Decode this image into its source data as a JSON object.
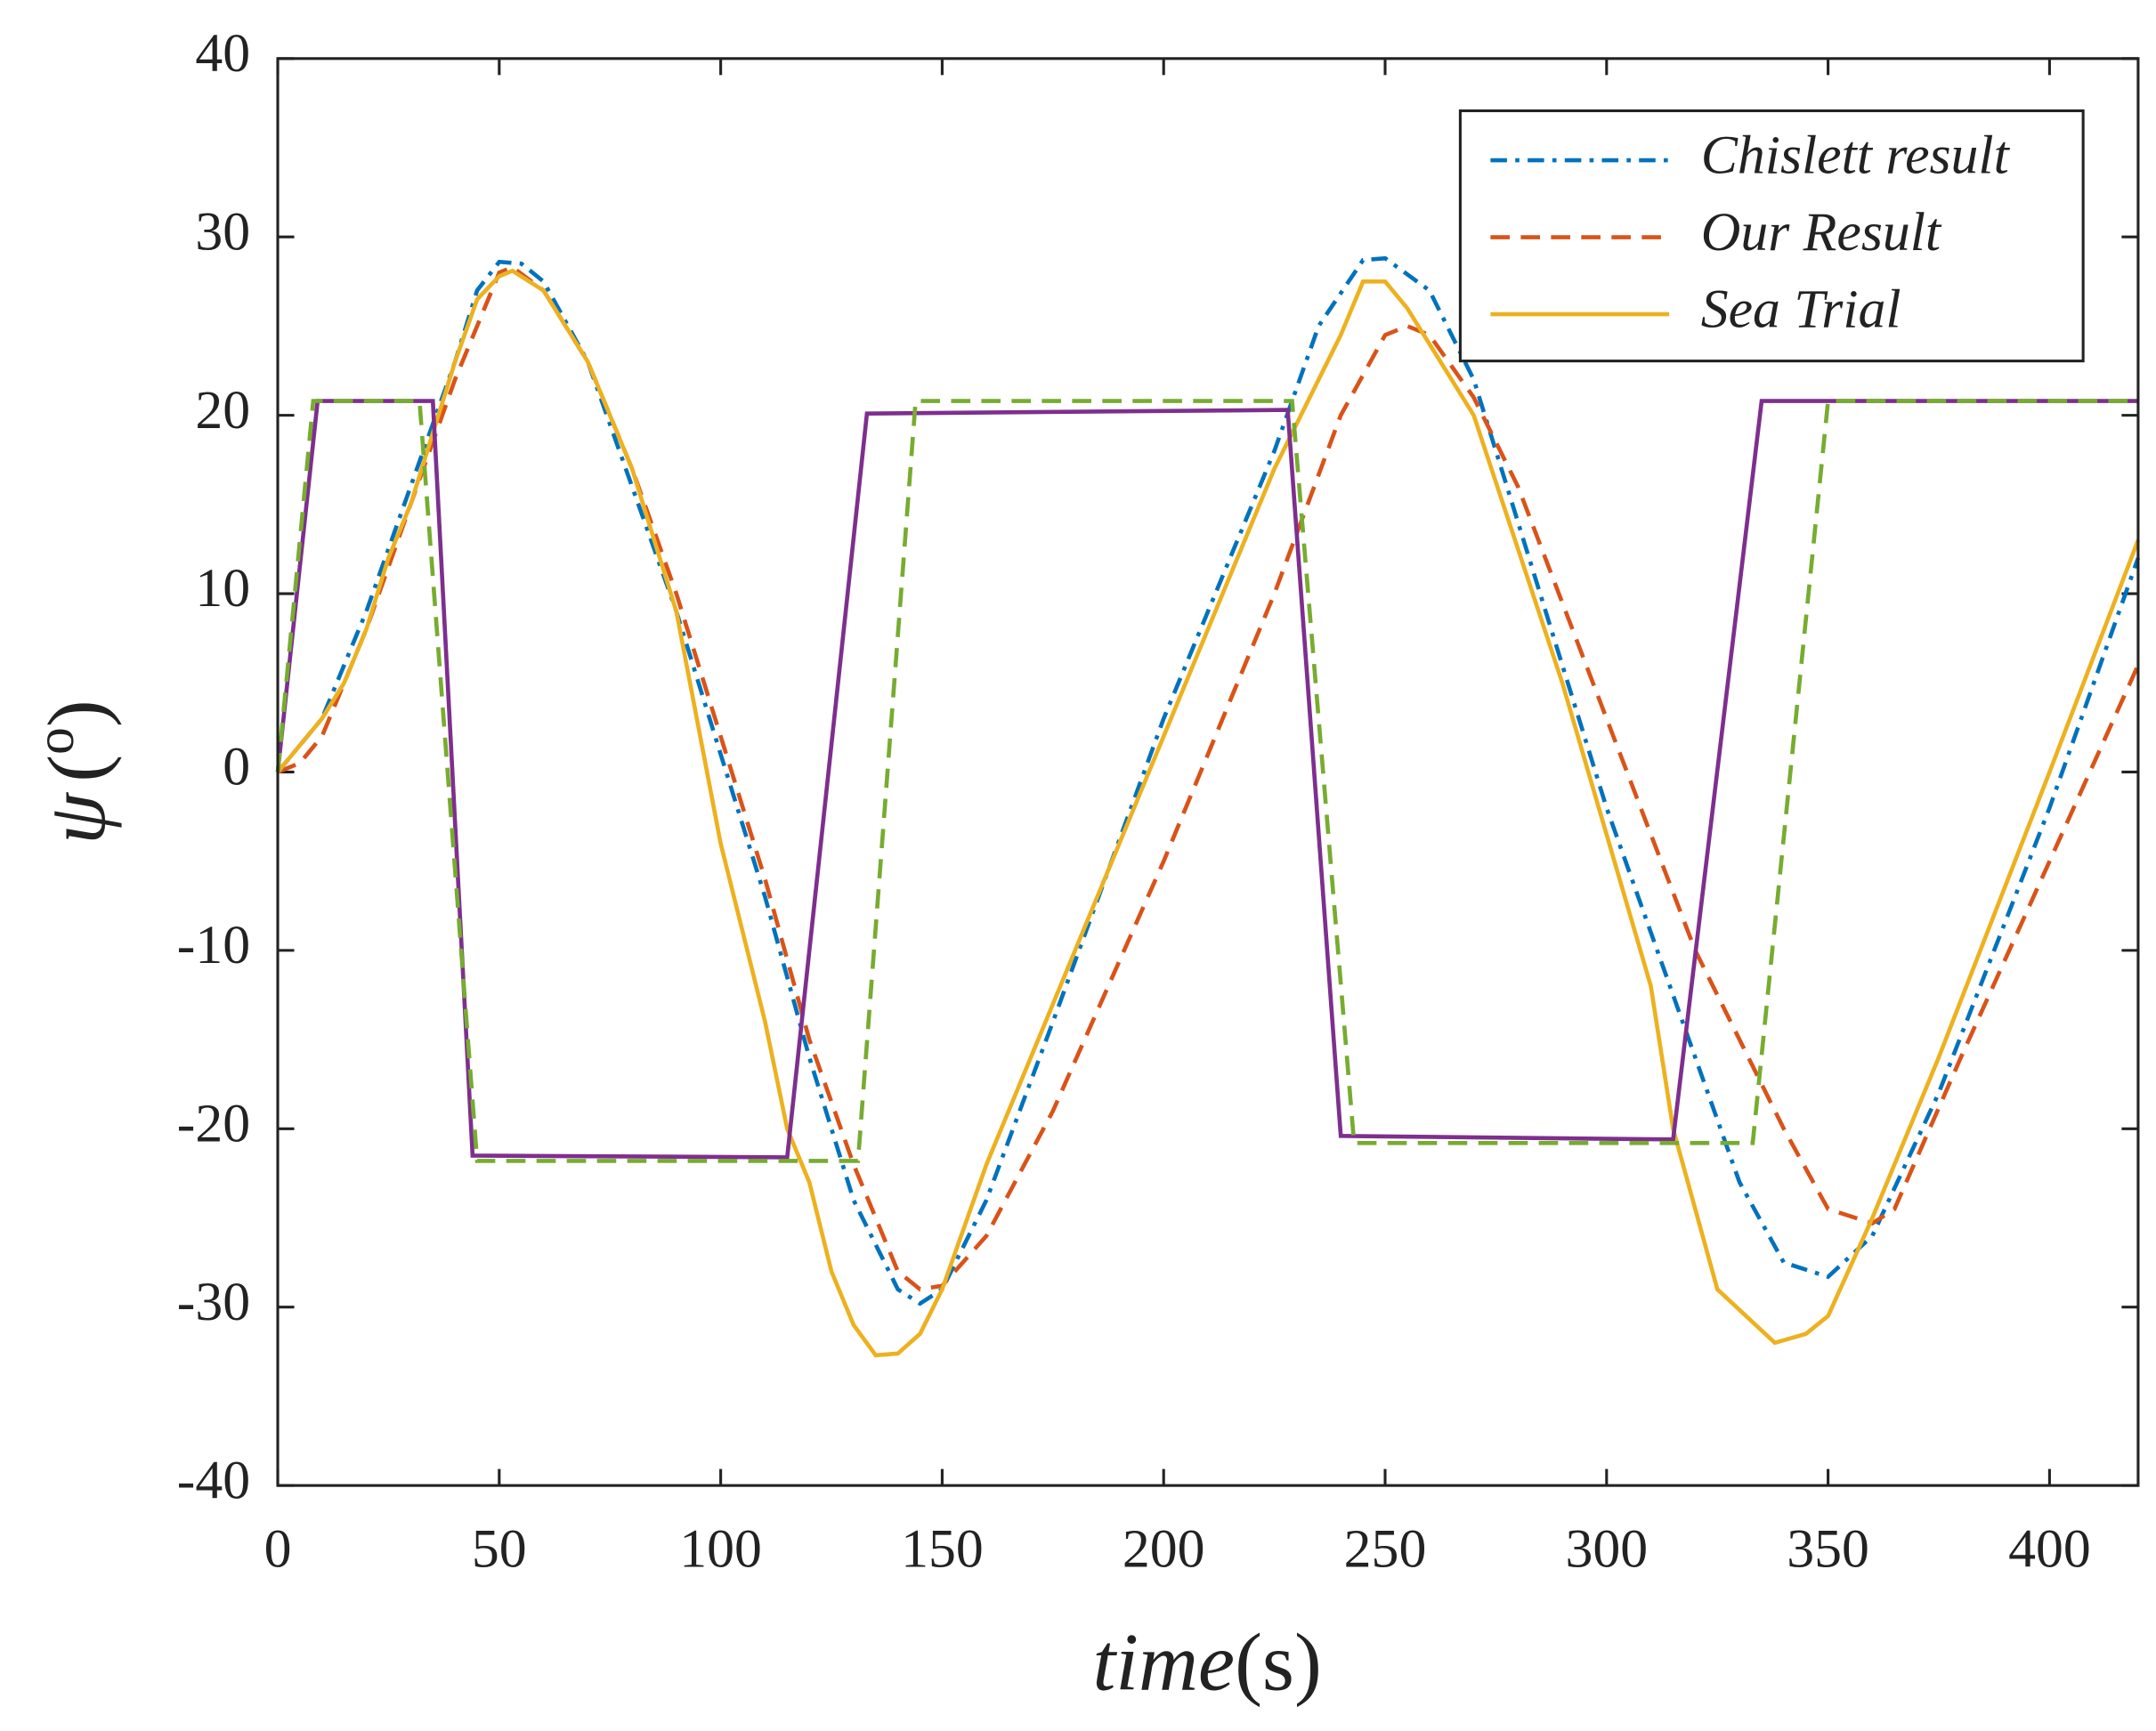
{
  "chart_data": {
    "type": "line",
    "xlabel": [
      "time",
      "(s)"
    ],
    "ylabel": [
      "ψ",
      "(",
      "o",
      ")"
    ],
    "xlim": [
      0,
      420
    ],
    "ylim": [
      -40,
      40
    ],
    "xticks": [
      0,
      50,
      100,
      150,
      200,
      250,
      300,
      350,
      400
    ],
    "yticks": [
      -40,
      -30,
      -20,
      -10,
      0,
      10,
      20,
      30,
      40
    ],
    "legend": "upper right",
    "series": [
      {
        "name": "Chislett result",
        "color": "#0072bd",
        "dash": "dashdot",
        "x": [
          0,
          10,
          20,
          30,
          40,
          45,
          50,
          55,
          60,
          70,
          80,
          90,
          100,
          110,
          120,
          130,
          140,
          145,
          150,
          160,
          175,
          200,
          225,
          235,
          245,
          250,
          260,
          270,
          280,
          300,
          320,
          330,
          340,
          350,
          360,
          375,
          400,
          420
        ],
        "values": [
          0,
          3,
          9,
          16,
          23,
          27,
          28.6,
          28.5,
          27.5,
          23,
          16,
          9,
          1,
          -7,
          -16,
          -24,
          -29,
          -29.8,
          -29,
          -24,
          -14,
          3,
          18,
          25,
          28.7,
          28.8,
          27,
          22,
          14,
          -2,
          -16,
          -23,
          -27.5,
          -28.3,
          -26,
          -18,
          -2,
          12
        ]
      },
      {
        "name": "Our Result",
        "color": "#d95319",
        "dash": "dashed",
        "x": [
          0,
          5,
          10,
          20,
          30,
          40,
          50,
          53,
          60,
          70,
          80,
          90,
          100,
          110,
          120,
          130,
          140,
          145,
          150,
          160,
          175,
          200,
          225,
          240,
          250,
          255,
          260,
          270,
          280,
          300,
          320,
          340,
          350,
          360,
          365,
          380,
          400,
          420
        ],
        "values": [
          0,
          0.5,
          2,
          8,
          15,
          22,
          28,
          28.3,
          27,
          23,
          17,
          10,
          2,
          -6,
          -15,
          -22,
          -28,
          -29,
          -28.8,
          -26,
          -19,
          -5,
          10,
          20,
          24.5,
          25,
          24.5,
          21,
          16,
          3,
          -10,
          -20,
          -24.5,
          -25.3,
          -24.5,
          -16,
          -5,
          6
        ]
      },
      {
        "name": "Sea Trial",
        "color": "#edb120",
        "dash": "solid",
        "x": [
          0,
          5,
          10,
          15,
          20,
          25,
          30,
          35,
          40,
          45,
          50,
          53,
          60,
          70,
          80,
          90,
          100,
          110,
          115,
          120,
          125,
          130,
          135,
          140,
          145,
          150,
          160,
          175,
          200,
          225,
          240,
          245,
          250,
          255,
          270,
          290,
          310,
          315,
          325,
          338,
          345,
          350,
          360,
          375,
          400,
          420
        ],
        "values": [
          0,
          1.5,
          3,
          5,
          8,
          12,
          15,
          19,
          23,
          26.5,
          27.8,
          28.1,
          27,
          23,
          17,
          9,
          -4,
          -14,
          -20,
          -23,
          -28,
          -31,
          -32.7,
          -32.6,
          -31.5,
          -29,
          -22,
          -13,
          2,
          17,
          24.5,
          27.5,
          27.5,
          26,
          20,
          5,
          -12,
          -20,
          -29,
          -32,
          -31.5,
          -30.5,
          -25,
          -16,
          0,
          13
        ]
      },
      {
        "color": "#7e2f8e",
        "dash": "solid",
        "x": [
          0,
          9,
          35,
          44,
          115,
          133,
          228,
          240,
          315,
          335,
          420
        ],
        "values": [
          0,
          20.8,
          20.8,
          -21.5,
          -21.6,
          20.1,
          20.3,
          -20.4,
          -20.6,
          20.8,
          20.8
        ]
      },
      {
        "color": "#77ac30",
        "dash": "dashed",
        "x": [
          0,
          8,
          32,
          45,
          130,
          131,
          144,
          229,
          243,
          333,
          350,
          420
        ],
        "values": [
          0,
          20.8,
          20.8,
          -21.8,
          -21.8,
          -21.8,
          20.8,
          20.8,
          -20.8,
          -20.8,
          20.8,
          20.8
        ]
      }
    ]
  }
}
